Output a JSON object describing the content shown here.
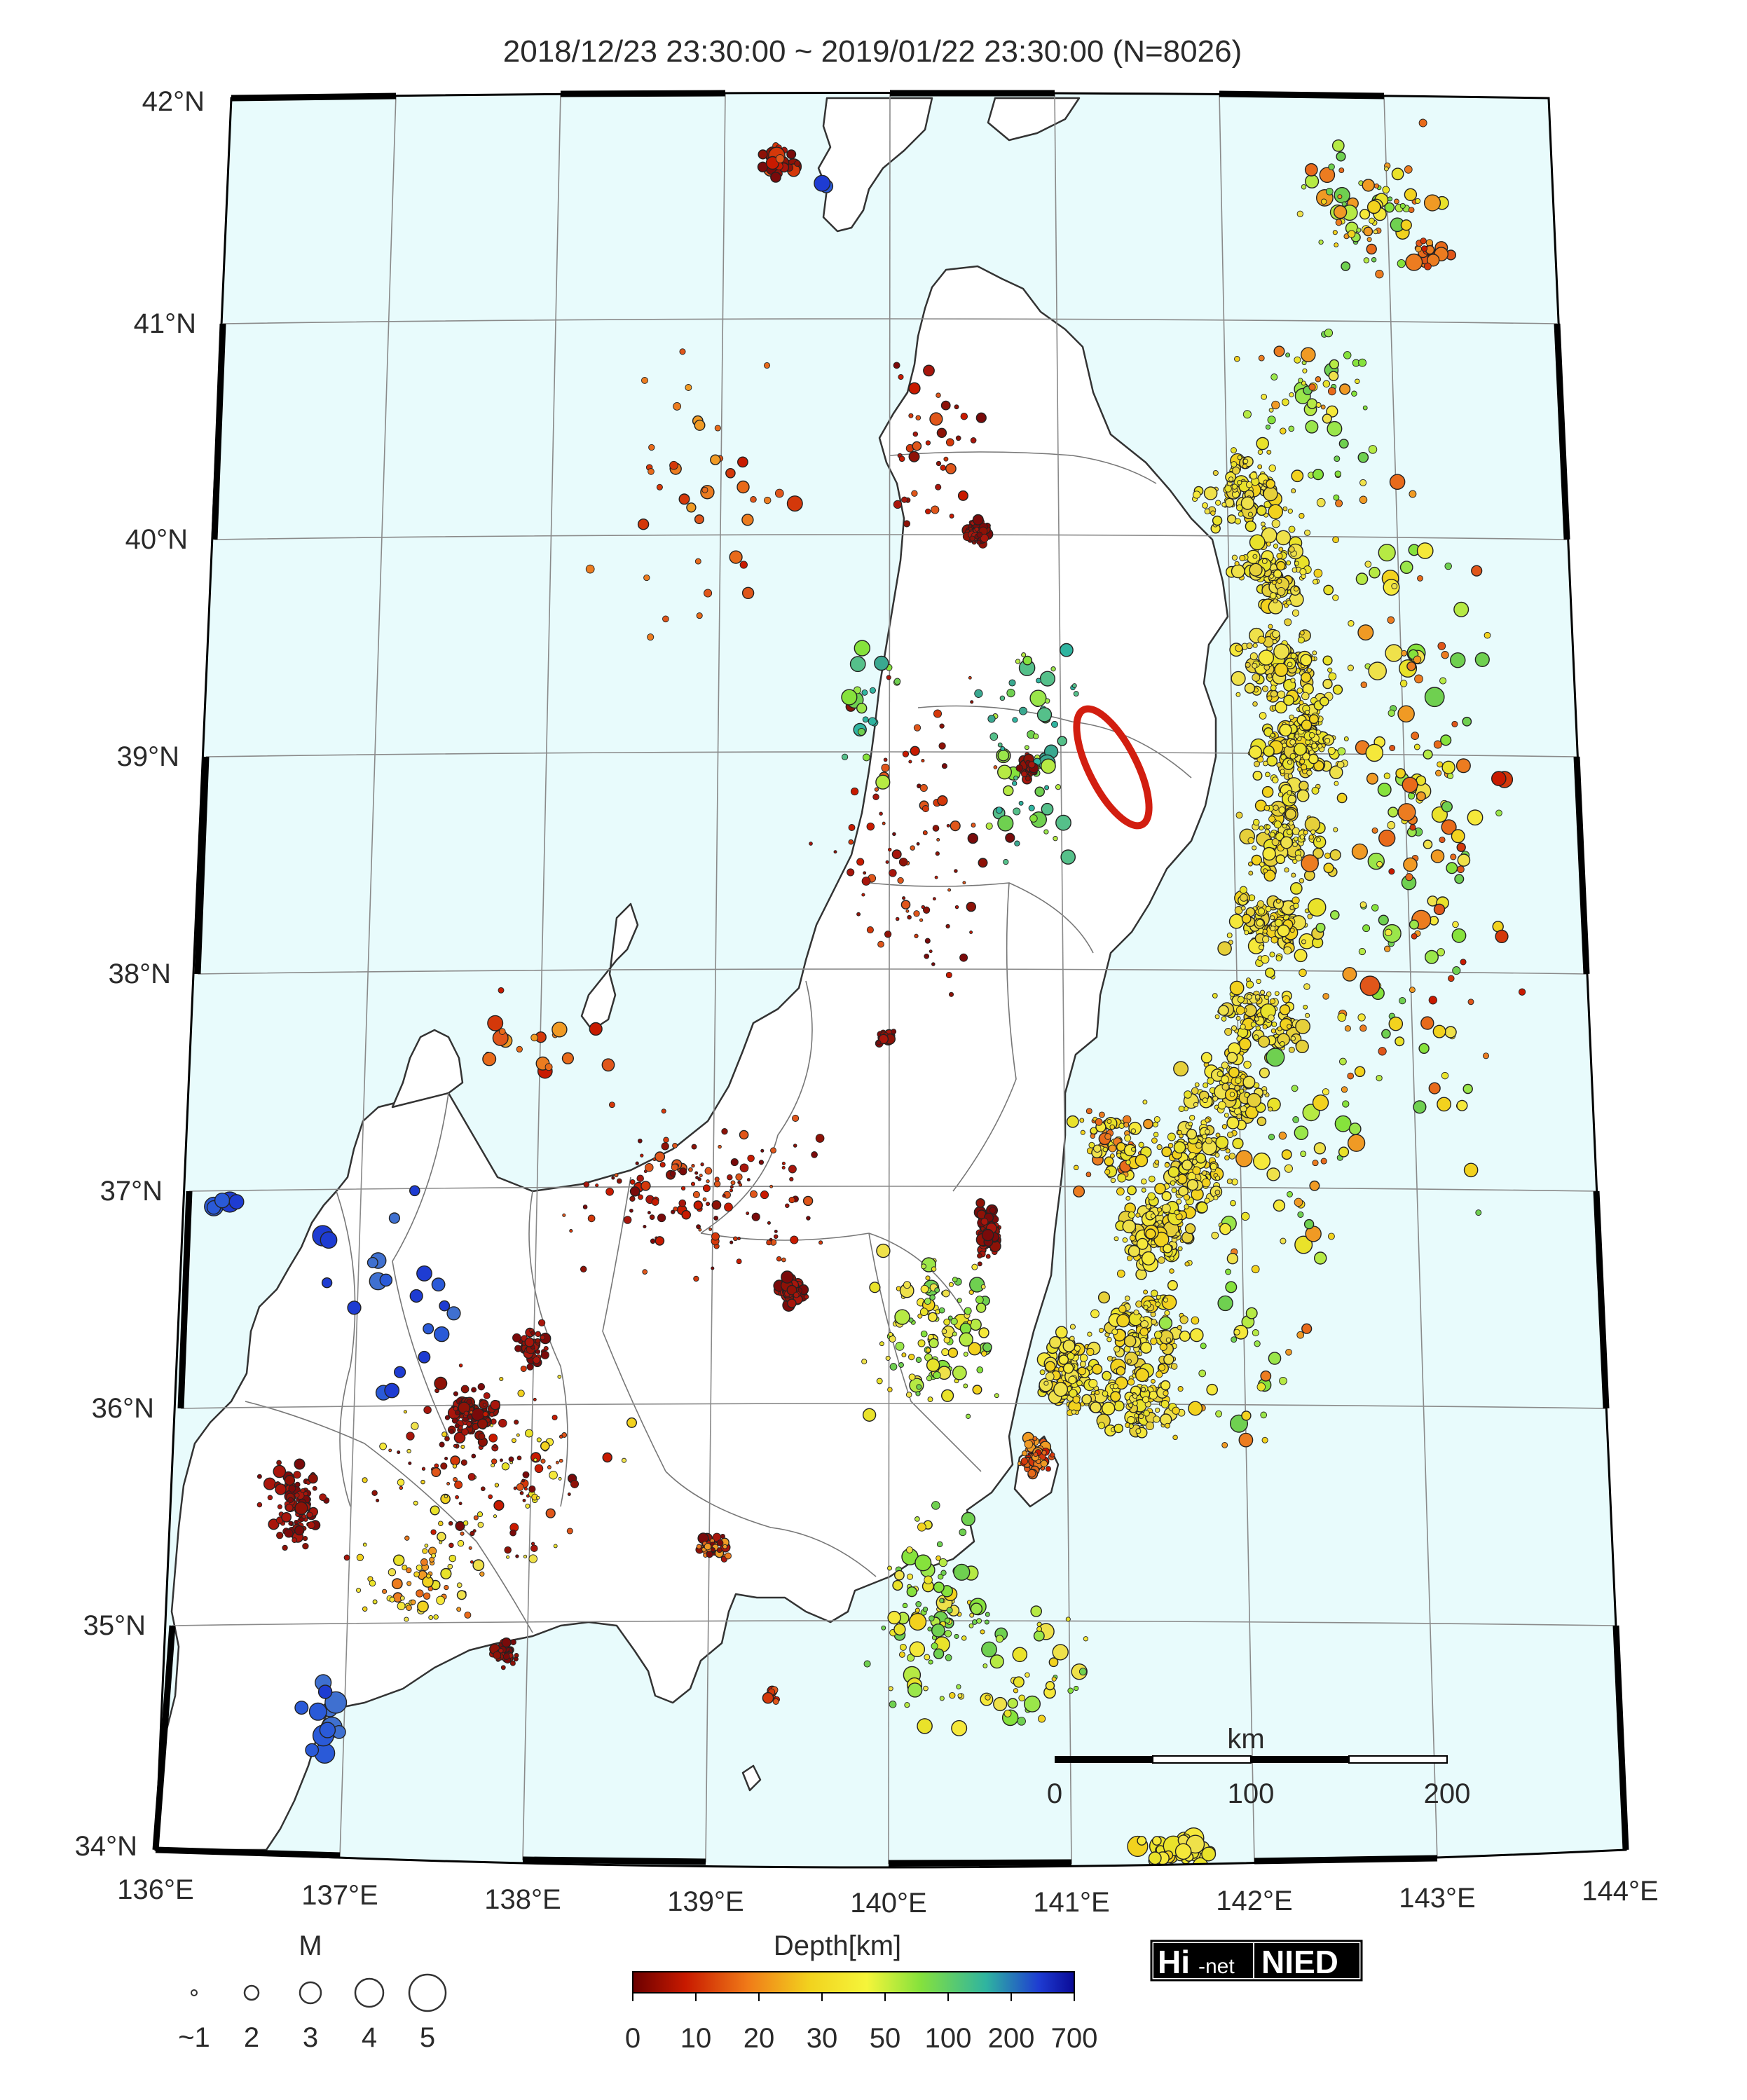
{
  "map": {
    "title": "2018/12/23 23:30:00 ~ 2019/01/22 23:30:00 (N=8026)",
    "lat_labels": [
      "42°N",
      "41°N",
      "40°N",
      "39°N",
      "38°N",
      "37°N",
      "36°N",
      "35°N",
      "34°N"
    ],
    "lon_labels": [
      "136°E",
      "137°E",
      "138°E",
      "139°E",
      "140°E",
      "141°E",
      "142°E",
      "143°E",
      "144°E"
    ],
    "colors": {
      "sea": "#e8fbfc",
      "land": "#ffffff",
      "coast": "#333333",
      "highlight": "#d21e10"
    },
    "scale_bar": {
      "unit": "km",
      "ticks": [
        "0",
        "100",
        "200"
      ]
    },
    "depth_legend": {
      "title": "Depth[km]",
      "labels": [
        "0",
        "10",
        "20",
        "30",
        "50",
        "100",
        "200",
        "700"
      ],
      "colors": [
        "#6b0000",
        "#c81a00",
        "#f07a18",
        "#f2d21e",
        "#f5f53a",
        "#86e23c",
        "#2fb4a0",
        "#1e3cd2",
        "#0a0a96"
      ]
    },
    "magnitude_legend": {
      "title": "M",
      "labels": [
        "~1",
        "2",
        "3",
        "4",
        "5"
      ]
    },
    "logo": {
      "left": "Hi",
      "mid": "-net",
      "right": "NIED"
    }
  }
}
